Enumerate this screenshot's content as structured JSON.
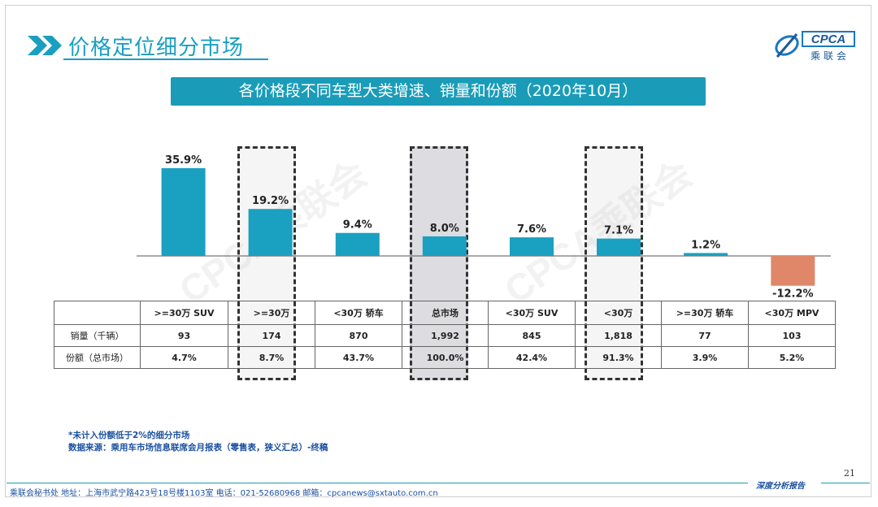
{
  "header": {
    "title": "价格定位细分市场",
    "subtitle": "各价格段不同车型大类增速、销量和份额（2020年10月）",
    "logo_text": "CPCA",
    "logo_subtext": "乘联会",
    "watermark": "CPCA乘联会"
  },
  "colors": {
    "accent": "#1a9cb8",
    "bar_positive": "#1aa0c0",
    "bar_negative": "#e0876a"
  },
  "chart_data": {
    "type": "bar",
    "title": "各价格段不同车型大类增速、销量和份额（2020年10月）",
    "categories": [
      ">=30万 SUV",
      ">=30万",
      "<30万 轿车",
      "总市场",
      "<30万 SUV",
      "<30万",
      ">=30万 轿车",
      "<30万 MPV"
    ],
    "series": [
      {
        "values": [
          35.9,
          19.2,
          9.4,
          8.0,
          7.6,
          7.1,
          1.2,
          -12.2
        ]
      }
    ],
    "data_labels": [
      "35.9%",
      "19.2%",
      "9.4%",
      "8.0%",
      "7.6%",
      "7.1%",
      "1.2%",
      "-12.2%"
    ],
    "ylim": [
      -15,
      40
    ],
    "grid": false,
    "highlighted_columns": [
      1,
      3,
      5
    ]
  },
  "table": {
    "headers": [
      ">=30万 SUV",
      ">=30万",
      "<30万 轿车",
      "总市场",
      "<30万 SUV",
      "<30万",
      ">=30万 轿车",
      "<30万 MPV"
    ],
    "rows": [
      {
        "label": "销量（千辆）",
        "cells": [
          "93",
          "174",
          "870",
          "1,992",
          "845",
          "1,818",
          "77",
          "103"
        ]
      },
      {
        "label": "份额（总市场）",
        "cells": [
          "4.7%",
          "8.7%",
          "43.7%",
          "100.0%",
          "42.4%",
          "91.3%",
          "3.9%",
          "5.2%"
        ]
      }
    ]
  },
  "notes": {
    "line1": "*未计入份额低于2%的细分市场",
    "line2": "数据来源：乘用车市场信息联席会月报表（零售表，狭义汇总）-终稿"
  },
  "footer": {
    "address": "乘联会秘书处   地址：上海市武宁路423号18号楼1103室   电话：021-52680968   邮箱：cpcanews@sxtauto.com.cn",
    "right_label": "深度分析报告",
    "page_number": "21"
  }
}
